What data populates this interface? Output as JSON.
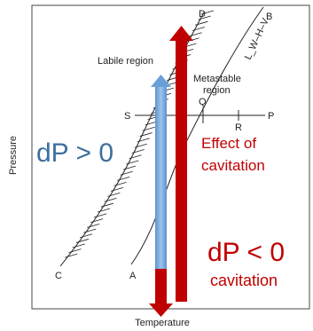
{
  "colors": {
    "blue_arrow": "#4a86c8",
    "blue_arrow_light": "#9fc3ea",
    "red_arrow": "#c00000",
    "curve": "#222222",
    "blue_text": "#3d6f9d",
    "red_text": "#c00000"
  },
  "labels": {
    "labile_region": "Labile region",
    "metastable_line1": "Metastable",
    "metastable_line2": "region",
    "curve_name": "L_W–H–V",
    "point_b": "B",
    "point_d": "D",
    "point_c": "C",
    "point_a": "A",
    "point_s": "S",
    "point_p": "P",
    "point_q": "Q",
    "point_r": "R",
    "y_axis": "Pressure",
    "x_axis": "Temperature"
  },
  "annotations": {
    "dp_positive": "dP > 0",
    "effect_line1": "Effect of",
    "effect_line2": "cavitation",
    "dp_negative": "dP < 0",
    "cavitation": "cavitation"
  }
}
